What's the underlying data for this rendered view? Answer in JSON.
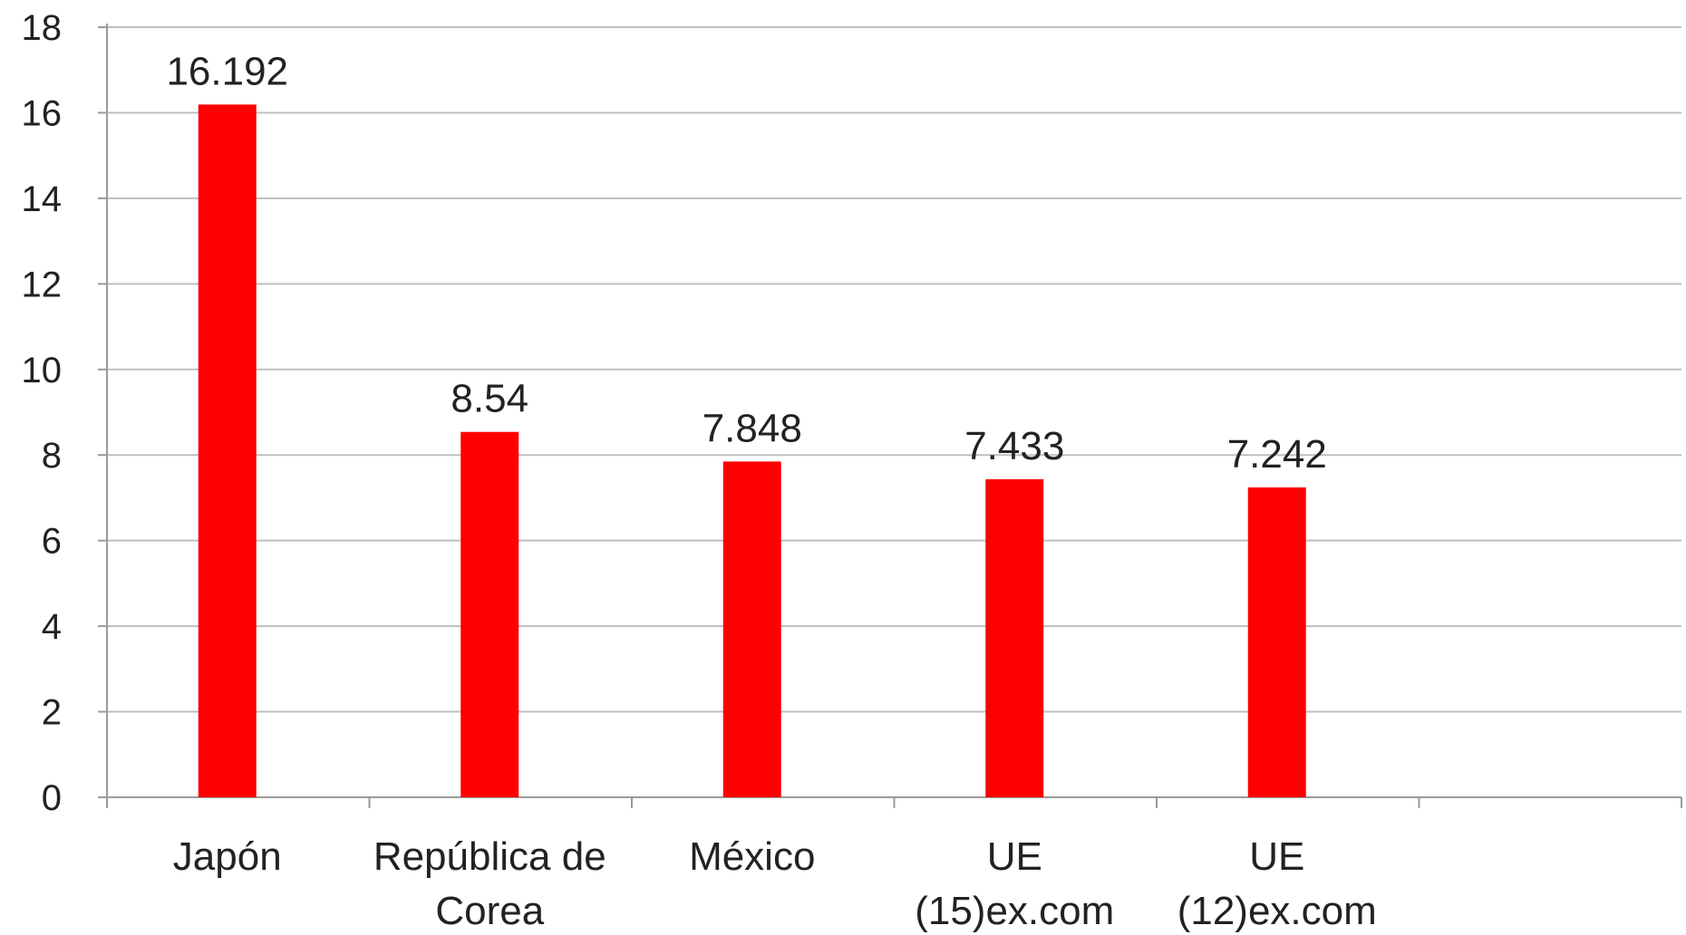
{
  "chart_data": {
    "type": "bar",
    "categories": [
      [
        "Japón"
      ],
      [
        "República de",
        "Corea"
      ],
      [
        "México"
      ],
      [
        "UE",
        "(15)ex.com"
      ],
      [
        "UE",
        "(12)ex.com"
      ],
      [
        ""
      ]
    ],
    "values": [
      16.192,
      8.54,
      7.848,
      7.433,
      7.242,
      null
    ],
    "data_labels": [
      "16.192",
      "8.54",
      "7.848",
      "7.433",
      "7.242",
      ""
    ],
    "ylim": [
      0,
      18
    ],
    "yticks": [
      0,
      2,
      4,
      6,
      8,
      10,
      12,
      14,
      16,
      18
    ],
    "title": "",
    "xlabel": "",
    "ylabel": "",
    "grid": true,
    "legend": "none",
    "colors": {
      "bar": "#ff0000",
      "grid": "#bfbfbf",
      "axis": "#9a9a9a"
    }
  }
}
